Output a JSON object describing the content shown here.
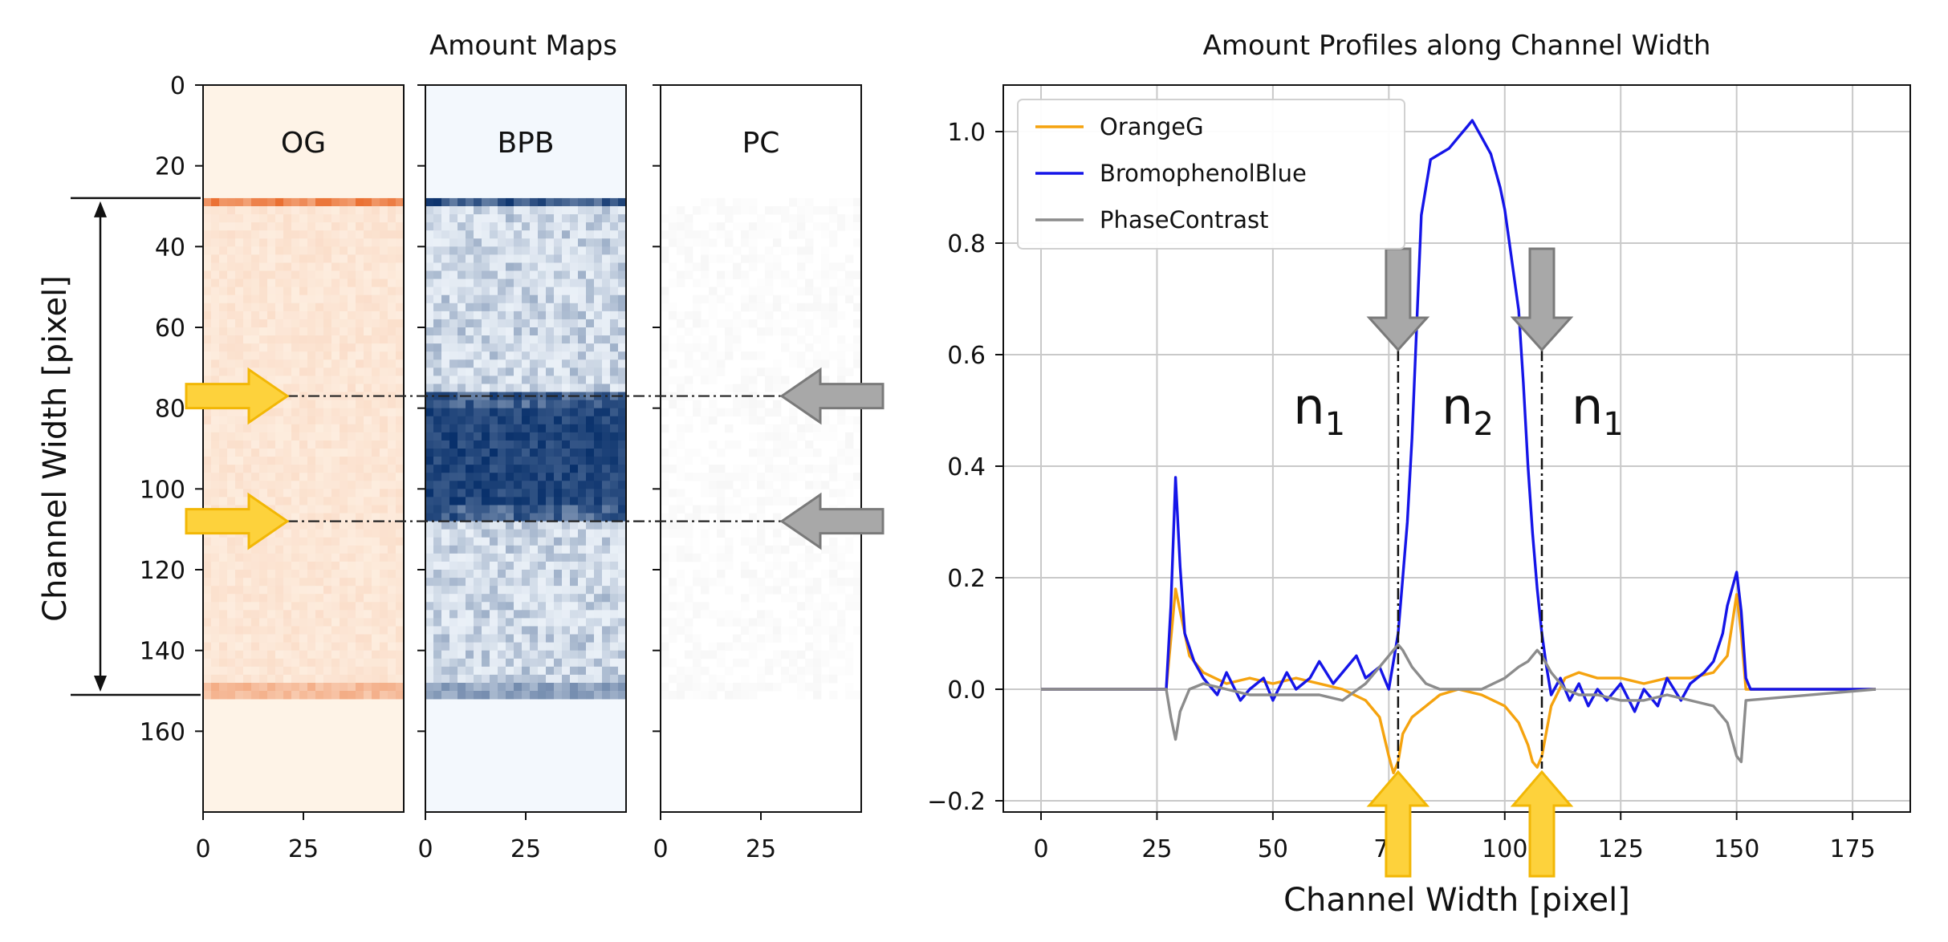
{
  "chart_data": [
    {
      "type": "heatmap",
      "title": "Amount Maps",
      "ylabel": "Channel Width [pixel]",
      "ylim": [
        0,
        180
      ],
      "xlim": [
        0,
        50
      ],
      "yticks": [
        0,
        20,
        40,
        60,
        80,
        100,
        120,
        140,
        160
      ],
      "xticks": [
        0,
        25
      ],
      "panels": [
        {
          "name": "OG",
          "base_color": "#fef3e7",
          "band_color": "#e8601c"
        },
        {
          "name": "BPB",
          "base_color": "#f3f8fd",
          "band_color": "#08306b"
        },
        {
          "name": "PC",
          "base_color": "#ffffff",
          "band_color": "#9a9a9a"
        }
      ],
      "channel_span": [
        28,
        151
      ],
      "interface_lines": [
        77,
        108
      ]
    },
    {
      "type": "line",
      "title": "Amount Profiles along Channel Width",
      "xlabel": "Channel Width [pixel]",
      "ylabel": "",
      "xlim": [
        0,
        180
      ],
      "ylim": [
        -0.2,
        1.05
      ],
      "xticks": [
        0,
        25,
        50,
        75,
        100,
        125,
        150,
        175
      ],
      "yticks": [
        -0.2,
        0.0,
        0.2,
        0.4,
        0.6,
        0.8,
        1.0
      ],
      "grid": true,
      "legend": "top-left",
      "series": [
        {
          "name": "OrangeG",
          "color": "#f5a30f",
          "x": [
            0,
            27,
            29,
            30,
            32,
            35,
            40,
            45,
            50,
            55,
            60,
            65,
            70,
            73,
            75,
            76,
            77,
            78,
            80,
            83,
            86,
            90,
            95,
            100,
            103,
            105,
            106,
            107,
            108,
            110,
            113,
            116,
            120,
            125,
            130,
            135,
            140,
            145,
            148,
            150,
            151,
            152,
            180
          ],
          "y": [
            0,
            0,
            0.18,
            0.14,
            0.06,
            0.03,
            0.01,
            0.02,
            0.01,
            0.02,
            0.01,
            0.0,
            -0.02,
            -0.05,
            -0.12,
            -0.15,
            -0.13,
            -0.08,
            -0.05,
            -0.03,
            -0.01,
            0.0,
            -0.01,
            -0.03,
            -0.06,
            -0.1,
            -0.13,
            -0.14,
            -0.12,
            -0.03,
            0.02,
            0.03,
            0.02,
            0.02,
            0.01,
            0.02,
            0.02,
            0.03,
            0.06,
            0.17,
            0.1,
            0,
            0
          ]
        },
        {
          "name": "BromophenolBlue",
          "color": "#1515e8",
          "x": [
            0,
            27,
            28,
            29,
            30,
            31,
            33,
            35,
            38,
            40,
            43,
            45,
            48,
            50,
            53,
            55,
            58,
            60,
            63,
            65,
            68,
            70,
            73,
            75,
            76,
            77,
            78,
            79,
            80,
            81,
            82,
            84,
            86,
            88,
            90,
            92,
            93,
            95,
            97,
            99,
            100,
            101,
            103,
            104,
            105,
            106,
            107,
            108,
            109,
            110,
            112,
            114,
            116,
            118,
            120,
            122,
            125,
            128,
            130,
            133,
            135,
            138,
            140,
            143,
            145,
            147,
            148,
            150,
            151,
            152,
            153,
            180
          ],
          "y": [
            0,
            0,
            0.15,
            0.38,
            0.22,
            0.1,
            0.05,
            0.02,
            -0.01,
            0.03,
            -0.02,
            0.0,
            0.02,
            -0.02,
            0.03,
            0.0,
            0.02,
            0.05,
            0.01,
            0.03,
            0.06,
            0.02,
            0.04,
            0.0,
            0.05,
            0.1,
            0.2,
            0.3,
            0.45,
            0.65,
            0.85,
            0.95,
            0.96,
            0.97,
            0.99,
            1.01,
            1.02,
            0.99,
            0.96,
            0.9,
            0.86,
            0.8,
            0.68,
            0.55,
            0.4,
            0.28,
            0.18,
            0.1,
            0.04,
            -0.01,
            0.02,
            -0.02,
            0.01,
            -0.03,
            0.0,
            -0.02,
            0.01,
            -0.04,
            0.0,
            -0.03,
            0.02,
            -0.02,
            0.01,
            0.03,
            0.05,
            0.1,
            0.15,
            0.21,
            0.14,
            0.02,
            0,
            0
          ]
        },
        {
          "name": "PhaseContrast",
          "color": "#8c8c8c",
          "x": [
            0,
            27,
            28,
            29,
            30,
            32,
            35,
            40,
            45,
            50,
            55,
            60,
            65,
            70,
            73,
            75,
            77,
            78,
            80,
            83,
            86,
            90,
            95,
            100,
            103,
            105,
            107,
            108,
            110,
            113,
            116,
            120,
            125,
            130,
            135,
            140,
            145,
            148,
            150,
            151,
            152,
            180
          ],
          "y": [
            0,
            0,
            -0.05,
            -0.09,
            -0.04,
            0.0,
            0.01,
            0.0,
            -0.01,
            -0.01,
            -0.01,
            -0.01,
            -0.02,
            0.01,
            0.04,
            0.06,
            0.08,
            0.07,
            0.04,
            0.01,
            0.0,
            0.0,
            0.0,
            0.02,
            0.04,
            0.05,
            0.07,
            0.06,
            0.03,
            0.0,
            -0.01,
            -0.01,
            -0.02,
            -0.02,
            -0.01,
            -0.02,
            -0.03,
            -0.06,
            -0.12,
            -0.13,
            -0.02,
            0
          ]
        }
      ],
      "annotations": {
        "interfaces": [
          77,
          108
        ],
        "regions": [
          {
            "label": "n",
            "sub": "1",
            "x": 60,
            "color": "#8a8a8a"
          },
          {
            "label": "n",
            "sub": "2",
            "x": 92,
            "color": "#1515e8"
          },
          {
            "label": "n",
            "sub": "1",
            "x": 120,
            "color": "#8a8a8a"
          }
        ]
      }
    }
  ]
}
